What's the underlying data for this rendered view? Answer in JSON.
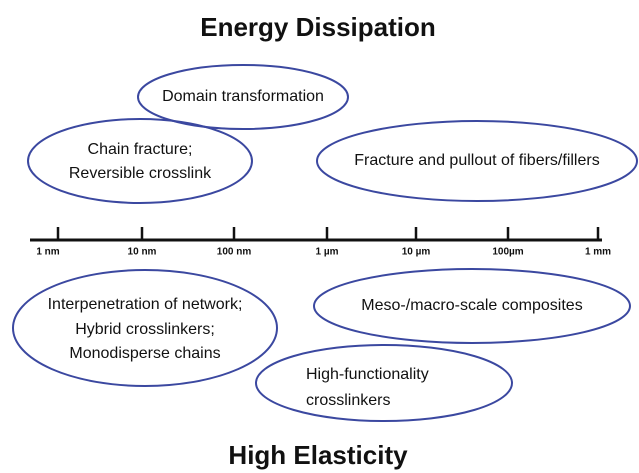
{
  "title": "Energy Dissipation",
  "bottom_title": "High Elasticity",
  "scale": {
    "labels": [
      "1 nm",
      "10 nm",
      "100 nm",
      "1 µm",
      "10 µm",
      "100µm",
      "1 mm"
    ]
  },
  "top_bubbles": [
    {
      "lines": [
        "Domain transformation"
      ]
    },
    {
      "lines": [
        "Chain fracture;",
        "Reversible crosslink"
      ]
    },
    {
      "lines": [
        "Fracture and pullout of fibers/fillers"
      ]
    }
  ],
  "bottom_bubbles": [
    {
      "lines": [
        "Interpenetration of network;",
        "Hybrid crosslinkers;",
        "Monodisperse chains"
      ]
    },
    {
      "lines": [
        "Meso-/macro-scale composites"
      ]
    },
    {
      "lines": [
        "High-functionality",
        "crosslinkers"
      ]
    }
  ]
}
